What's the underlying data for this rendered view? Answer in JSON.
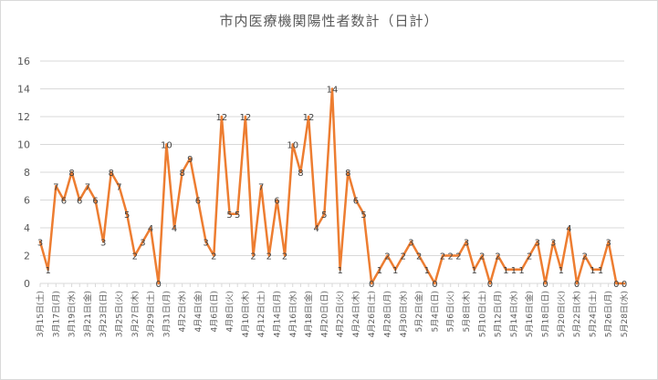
{
  "chart_data": {
    "type": "line",
    "title": "市内医療機関陽性者数計（日計）",
    "xlabel": "",
    "ylabel": "",
    "ylim": [
      0,
      16
    ],
    "yticks": [
      0,
      2,
      4,
      6,
      8,
      10,
      12,
      14,
      16
    ],
    "grid": true,
    "legend": "none",
    "line_color": "#ed7d31",
    "x": [
      "3月15日(土)",
      "3月16日(日)",
      "3月17日(月)",
      "3月18日(火)",
      "3月19日(水)",
      "3月20日(木)",
      "3月21日(金)",
      "3月22日(土)",
      "3月23日(日)",
      "3月24日(月)",
      "3月25日(火)",
      "3月26日(水)",
      "3月27日(木)",
      "3月28日(金)",
      "3月29日(土)",
      "3月30日(日)",
      "3月31日(月)",
      "4月1日(火)",
      "4月2日(水)",
      "4月3日(木)",
      "4月4日(金)",
      "4月5日(土)",
      "4月6日(日)",
      "4月7日(月)",
      "4月8日(火)",
      "4月9日(水)",
      "4月10日(木)",
      "4月11日(金)",
      "4月12日(土)",
      "4月13日(日)",
      "4月14日(月)",
      "4月15日(火)",
      "4月16日(水)",
      "4月17日(木)",
      "4月18日(金)",
      "4月19日(土)",
      "4月20日(日)",
      "4月21日(月)",
      "4月22日(火)",
      "4月23日(水)",
      "4月24日(木)",
      "4月25日(金)",
      "4月26日(土)",
      "4月27日(日)",
      "4月28日(月)",
      "4月29日(火)",
      "4月30日(水)",
      "5月1日(木)",
      "5月2日(金)",
      "5月3日(土)",
      "5月4日(日)",
      "5月5日(月)",
      "5月6日(火)",
      "5月7日(水)",
      "5月8日(木)",
      "5月9日(金)",
      "5月10日(土)",
      "5月11日(日)",
      "5月12日(月)",
      "5月13日(火)",
      "5月14日(水)",
      "5月15日(木)",
      "5月16日(金)",
      "5月17日(土)",
      "5月18日(日)",
      "5月19日(月)",
      "5月20日(火)",
      "5月21日(水)",
      "5月22日(木)",
      "5月23日(金)",
      "5月24日(土)",
      "5月25日(日)",
      "5月26日(月)",
      "5月27日(火)",
      "5月28日(水)"
    ],
    "x_tick_labels": [
      "3月15日(土)",
      "3月17日(月)",
      "3月19日(水)",
      "3月21日(金)",
      "3月23日(日)",
      "3月25日(火)",
      "3月27日(木)",
      "3月29日(土)",
      "3月31日(月)",
      "4月2日(水)",
      "4月4日(金)",
      "4月6日(日)",
      "4月8日(火)",
      "4月10日(木)",
      "4月12日(土)",
      "4月14日(月)",
      "4月16日(水)",
      "4月18日(金)",
      "4月20日(日)",
      "4月22日(火)",
      "4月24日(木)",
      "4月26日(土)",
      "4月28日(月)",
      "4月30日(水)",
      "5月2日(金)",
      "5月4日(日)",
      "5月6日(火)",
      "5月8日(木)",
      "5月10日(土)",
      "5月12日(月)",
      "5月14日(水)",
      "5月16日(金)",
      "5月18日(日)",
      "5月20日(火)",
      "5月22日(木)",
      "5月24日(土)",
      "5月26日(月)",
      "5月28日(水)"
    ],
    "values": [
      3,
      1,
      7,
      6,
      8,
      6,
      7,
      6,
      3,
      8,
      7,
      5,
      2,
      3,
      4,
      0,
      10,
      4,
      8,
      9,
      6,
      3,
      2,
      12,
      5,
      5,
      12,
      2,
      7,
      2,
      6,
      2,
      10,
      8,
      12,
      4,
      5,
      14,
      1,
      8,
      6,
      5,
      0,
      1,
      2,
      1,
      2,
      3,
      2,
      1,
      0,
      2,
      2,
      2,
      3,
      1,
      2,
      0,
      2,
      1,
      1,
      1,
      2,
      3,
      0,
      3,
      1,
      4,
      0,
      2,
      1,
      1,
      3,
      0,
      0
    ]
  }
}
